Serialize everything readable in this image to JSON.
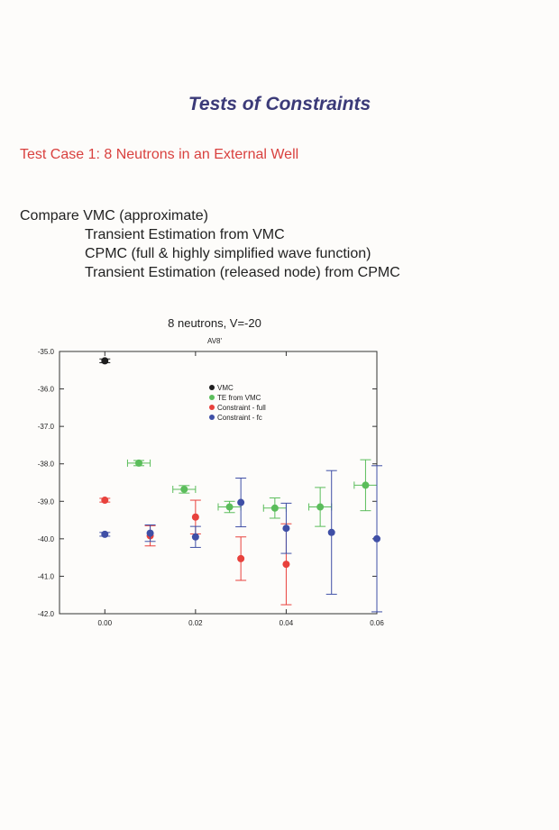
{
  "slide": {
    "title": "Tests of  Constraints",
    "test_case": "Test Case 1:  8 Neutrons in an External Well",
    "compare_heading": "Compare VMC (approximate)",
    "compare_items": [
      "Transient Estimation from VMC",
      "CPMC (full & highly simplified wave function)",
      "Transient Estimation (released node) from CPMC"
    ]
  },
  "chart_data": {
    "type": "scatter",
    "title": "8 neutrons, V=-20",
    "subtitle": "AV8'",
    "xlabel": "",
    "ylabel": "",
    "xlim": [
      -0.01,
      0.06
    ],
    "ylim": [
      -42.0,
      -35.0
    ],
    "x_ticks": [
      "0.00",
      "0.02",
      "0.04",
      "0.06"
    ],
    "x_tick_values": [
      0.0,
      0.02,
      0.04,
      0.06
    ],
    "y_ticks": [
      "-35.0",
      "-36.0",
      "-37.0",
      "-38.0",
      "-39.0",
      "-40.0",
      "-41.0",
      "-42.0"
    ],
    "y_tick_values": [
      -35.0,
      -36.0,
      -37.0,
      -38.0,
      -39.0,
      -40.0,
      -41.0,
      -42.0
    ],
    "grid": false,
    "legend_position": "top-center",
    "series": [
      {
        "name": "VMC",
        "color": "#1e1e1e",
        "points": [
          {
            "x": 0.0,
            "y": -35.25,
            "yerr": 0.05,
            "xerr": 0
          }
        ]
      },
      {
        "name": "TE from VMC",
        "color": "#5bbd5b",
        "points": [
          {
            "x": 0.0075,
            "y": -37.98,
            "yerr": 0.07,
            "xerr": 0.0025
          },
          {
            "x": 0.0175,
            "y": -38.68,
            "yerr": 0.1,
            "xerr": 0.0025
          },
          {
            "x": 0.0275,
            "y": -39.15,
            "yerr": 0.15,
            "xerr": 0.0025
          },
          {
            "x": 0.0375,
            "y": -39.18,
            "yerr": 0.27,
            "xerr": 0.0025
          },
          {
            "x": 0.0475,
            "y": -39.15,
            "yerr": 0.52,
            "xerr": 0.0025
          },
          {
            "x": 0.0575,
            "y": -38.57,
            "yerr": 0.68,
            "xerr": 0.0025
          }
        ]
      },
      {
        "name": "Constraint - full",
        "color": "#e8413c",
        "points": [
          {
            "x": 0.0,
            "y": -38.97,
            "yerr": 0.05,
            "xerr": 0
          },
          {
            "x": 0.01,
            "y": -39.92,
            "yerr": 0.27,
            "xerr": 0
          },
          {
            "x": 0.02,
            "y": -39.42,
            "yerr": 0.45,
            "xerr": 0
          },
          {
            "x": 0.03,
            "y": -40.53,
            "yerr": 0.58,
            "xerr": 0
          },
          {
            "x": 0.04,
            "y": -40.68,
            "yerr": 1.08,
            "xerr": 0
          }
        ]
      },
      {
        "name": "Constraint - fc",
        "color": "#3f4fa6",
        "points": [
          {
            "x": 0.0,
            "y": -39.88,
            "yerr": 0.05,
            "xerr": 0
          },
          {
            "x": 0.01,
            "y": -39.85,
            "yerr": 0.22,
            "xerr": 0
          },
          {
            "x": 0.02,
            "y": -39.95,
            "yerr": 0.28,
            "xerr": 0
          },
          {
            "x": 0.03,
            "y": -39.03,
            "yerr": 0.65,
            "xerr": 0
          },
          {
            "x": 0.04,
            "y": -39.72,
            "yerr": 0.67,
            "xerr": 0
          },
          {
            "x": 0.05,
            "y": -39.83,
            "yerr": 1.65,
            "xerr": 0
          },
          {
            "x": 0.06,
            "y": -40.0,
            "yerr": 1.95,
            "xerr": 0
          }
        ]
      }
    ]
  }
}
